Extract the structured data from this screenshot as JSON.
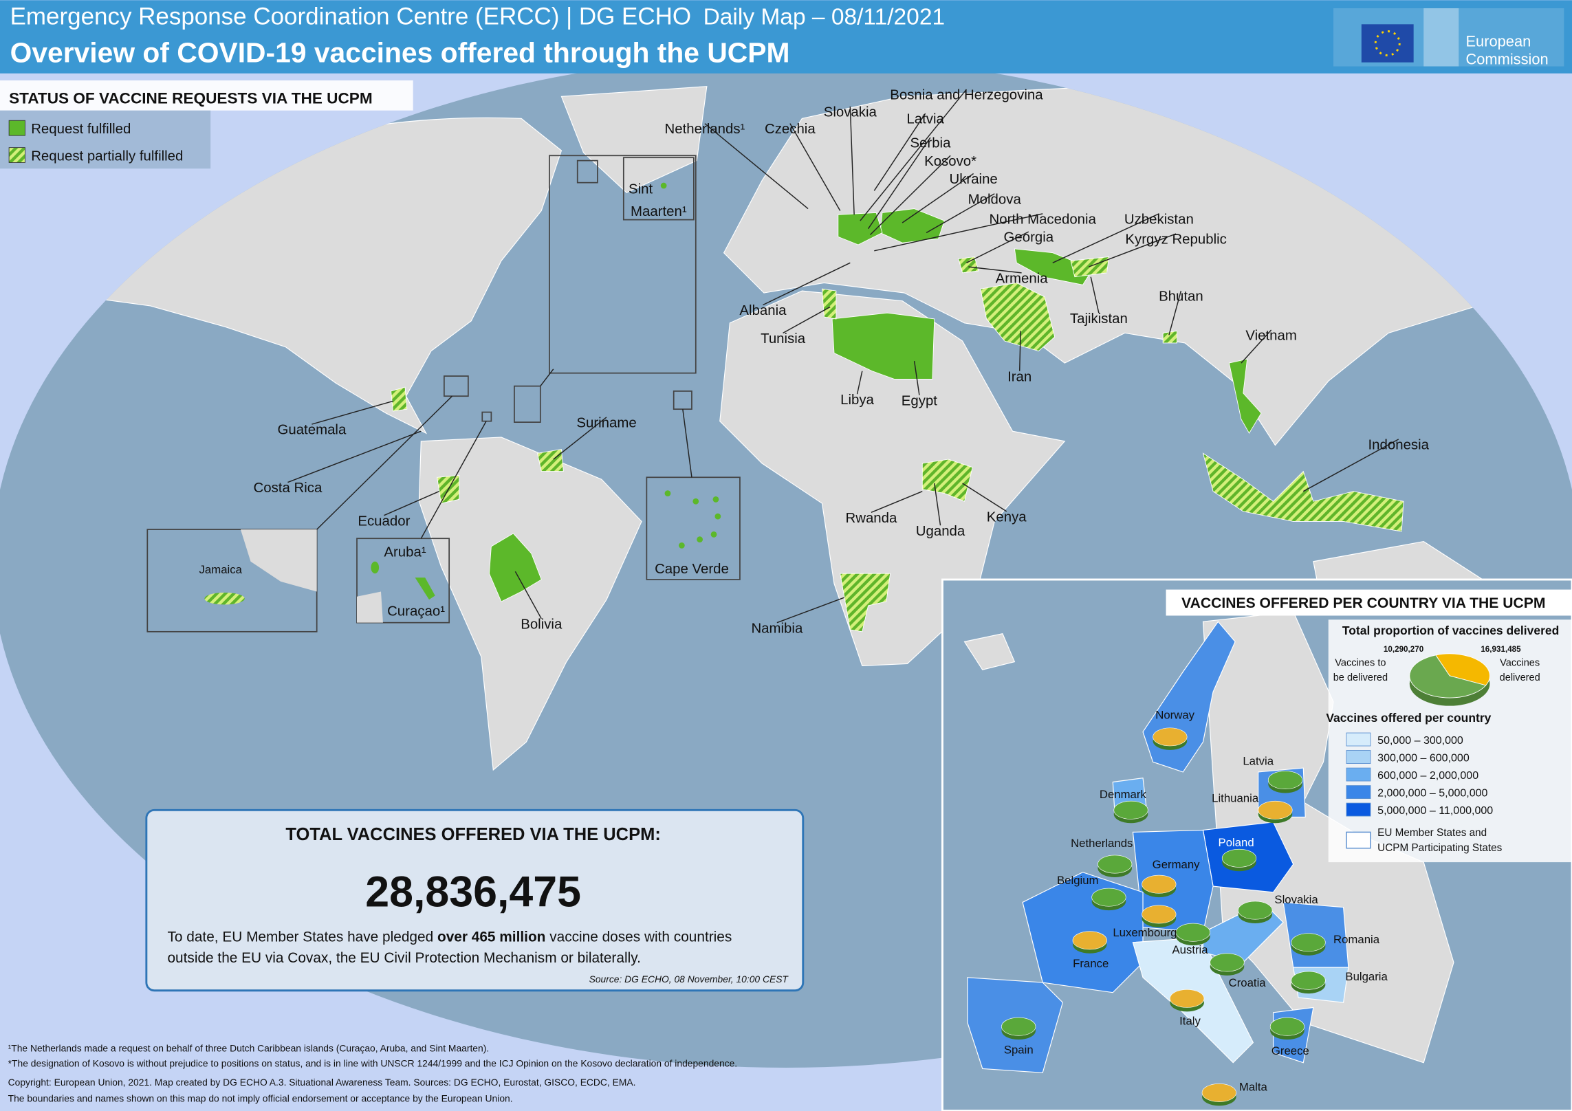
{
  "header": {
    "organization": "Emergency Response Coordination Centre (ERCC) | DG ECHO",
    "date_label": "Daily Map – 08/11/2021",
    "title": "Overview of COVID-19 vaccines offered through the UCPM",
    "logo_lines": [
      "European",
      "Commission"
    ]
  },
  "status_legend": {
    "title": "STATUS OF VACCINE REQUESTS VIA THE UCPM",
    "items": [
      "Request fulfilled",
      "Request partially fulfilled"
    ]
  },
  "map_labels": [
    "Netherlands¹",
    "Czechia",
    "Slovakia",
    "Bosnia and Herzegovina",
    "Latvia",
    "Serbia",
    "Kosovo*",
    "Ukraine",
    "Moldova",
    "North Macedonia",
    "Georgia",
    "Uzbekistan",
    "Kyrgyz Republic",
    "Armenia",
    "Tajikistan",
    "Bhutan",
    "Vietnam",
    "Iran",
    "Albania",
    "Tunisia",
    "Libya",
    "Egypt",
    "Indonesia",
    "Kenya",
    "Uganda",
    "Rwanda",
    "Namibia",
    "Bolivia",
    "Suriname",
    "Guatemala",
    "Costa Rica",
    "Ecuador",
    "Jamaica",
    "Aruba¹",
    "Curaçao¹",
    "Sint",
    "Maarten¹",
    "Cape Verde"
  ],
  "total_box": {
    "title": "TOTAL VACCINES OFFERED VIA THE UCPM:",
    "total": "28,836,475",
    "text_before": "To date, EU Member States have pledged ",
    "text_bold": "over 465 million",
    "text_after": " vaccine doses with countries",
    "text_line2": "outside the EU via Covax, the EU Civil Protection Mechanism or bilaterally.",
    "source": "Source: DG ECHO, 08 November, 10:00 CEST"
  },
  "inset": {
    "title": "VACCINES OFFERED PER COUNTRY VIA THE UCPM",
    "pie": {
      "title": "Total proportion of vaccines delivered",
      "slices": [
        {
          "label_lines": [
            "Vaccines to",
            "be delivered"
          ],
          "value": 10290270,
          "value_label": "10,290,270",
          "color": "#f5b800"
        },
        {
          "label_lines": [
            "Vaccines",
            "delivered"
          ],
          "value": 16931485,
          "value_label": "16,931,485",
          "color": "#6aa84f"
        }
      ]
    },
    "legend_title": "Vaccines offered per country",
    "legend_items": [
      {
        "label": "50,000 – 300,000",
        "color": "#d6ecfb"
      },
      {
        "label": "300,000 – 600,000",
        "color": "#a9d3f5"
      },
      {
        "label": "600,000 – 2,000,000",
        "color": "#6aaef0"
      },
      {
        "label": "2,000,000 – 5,000,000",
        "color": "#3a86e8"
      },
      {
        "label": "5,000,000 – 11,000,000",
        "color": "#0a5ae0"
      }
    ],
    "member_note": [
      "EU Member States and",
      "UCPM Participating States"
    ],
    "labels": [
      "Norway",
      "Latvia",
      "Denmark",
      "Lithuania",
      "Netherlands",
      "Poland",
      "Germany",
      "Belgium",
      "Slovakia",
      "Luxembourg",
      "Austria",
      "Romania",
      "France",
      "Croatia",
      "Bulgaria",
      "Italy",
      "Spain",
      "Greece",
      "Malta"
    ]
  },
  "footnotes": [
    "¹The Netherlands made a request on behalf of three Dutch Caribbean islands (Curaçao, Aruba, and Sint Maarten).",
    "*The designation of Kosovo is without prejudice to positions on status, and is in line with UNSCR 1244/1999 and the ICJ Opinion on the Kosovo declaration of independence.",
    "Copyright: European Union, 2021. Map created by DG ECHO A.3. Situational Awareness Team. Sources: DG ECHO, Eurostat, GISCO, ECDC, EMA.",
    "The boundaries and names shown on this map do not imply official endorsement or acceptance by the European Union."
  ]
}
